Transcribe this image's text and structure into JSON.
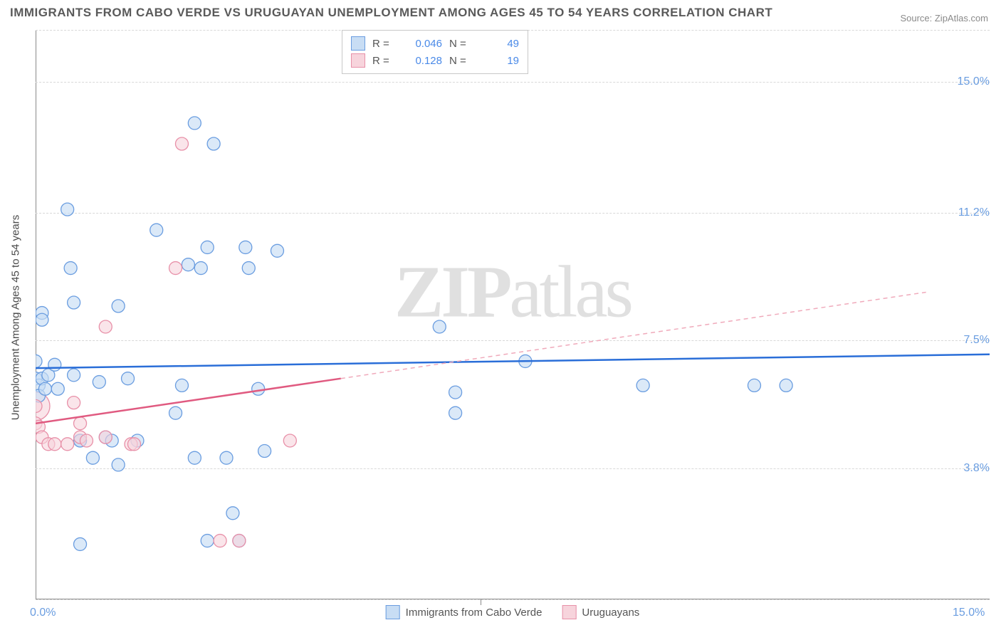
{
  "title": "IMMIGRANTS FROM CABO VERDE VS URUGUAYAN UNEMPLOYMENT AMONG AGES 45 TO 54 YEARS CORRELATION CHART",
  "source": "Source: ZipAtlas.com",
  "ylabel": "Unemployment Among Ages 45 to 54 years",
  "watermark_a": "ZIP",
  "watermark_b": "atlas",
  "xlim": [
    0,
    15
  ],
  "ylim": [
    0,
    16.5
  ],
  "xticks": [
    {
      "v": 0,
      "label": "0.0%"
    },
    {
      "v": 15,
      "label": "15.0%"
    }
  ],
  "xtick_mid": 7.0,
  "yticks": [
    {
      "v": 3.8,
      "label": "3.8%"
    },
    {
      "v": 7.5,
      "label": "7.5%"
    },
    {
      "v": 11.2,
      "label": "11.2%"
    },
    {
      "v": 15.0,
      "label": "15.0%"
    }
  ],
  "grid_y": [
    0,
    3.8,
    7.5,
    11.2,
    15.0,
    16.5
  ],
  "series": {
    "blue": {
      "label": "Immigrants from Cabo Verde",
      "fill": "#c8ddf4",
      "stroke": "#6a9de0",
      "fill_opacity": 0.65,
      "r_small": 9,
      "R": "0.046",
      "N": "49",
      "trend": {
        "x1": 0,
        "y1": 6.7,
        "x2": 15,
        "y2": 7.1,
        "color": "#2a6ed8",
        "width": 2.5
      },
      "points": [
        [
          0.1,
          8.3
        ],
        [
          0.1,
          8.1
        ],
        [
          0.0,
          6.9
        ],
        [
          0.0,
          6.4
        ],
        [
          0.05,
          6.2
        ],
        [
          0.05,
          5.9
        ],
        [
          0.1,
          6.4
        ],
        [
          0.15,
          6.1
        ],
        [
          0.2,
          6.5
        ],
        [
          0.3,
          6.8
        ],
        [
          0.35,
          6.1
        ],
        [
          0.5,
          11.3
        ],
        [
          0.55,
          9.6
        ],
        [
          0.6,
          8.6
        ],
        [
          0.6,
          6.5
        ],
        [
          0.7,
          4.6
        ],
        [
          0.7,
          4.6
        ],
        [
          0.7,
          1.6
        ],
        [
          0.9,
          4.1
        ],
        [
          1.0,
          6.3
        ],
        [
          1.1,
          4.7
        ],
        [
          1.2,
          4.6
        ],
        [
          1.3,
          8.5
        ],
        [
          1.3,
          3.9
        ],
        [
          1.45,
          6.4
        ],
        [
          1.6,
          4.6
        ],
        [
          1.9,
          10.7
        ],
        [
          2.2,
          5.4
        ],
        [
          2.3,
          6.2
        ],
        [
          2.4,
          9.7
        ],
        [
          2.5,
          13.8
        ],
        [
          2.5,
          4.1
        ],
        [
          2.6,
          9.6
        ],
        [
          2.7,
          1.7
        ],
        [
          2.7,
          10.2
        ],
        [
          2.8,
          13.2
        ],
        [
          3.0,
          4.1
        ],
        [
          3.1,
          2.5
        ],
        [
          3.2,
          1.7
        ],
        [
          3.3,
          10.2
        ],
        [
          3.35,
          9.6
        ],
        [
          3.5,
          6.1
        ],
        [
          3.6,
          4.3
        ],
        [
          3.8,
          10.1
        ],
        [
          6.35,
          7.9
        ],
        [
          6.6,
          5.4
        ],
        [
          6.6,
          6.0
        ],
        [
          7.7,
          6.9
        ],
        [
          9.55,
          6.2
        ],
        [
          11.3,
          6.2
        ],
        [
          11.8,
          6.2
        ]
      ]
    },
    "pink": {
      "label": "Uruguayans",
      "fill": "#f7d4dc",
      "stroke": "#e890a8",
      "fill_opacity": 0.6,
      "r_small": 9,
      "R": "0.128",
      "N": "19",
      "trend_solid": {
        "x1": 0,
        "y1": 5.1,
        "x2": 4.8,
        "y2": 6.4,
        "color": "#e05a80",
        "width": 2.5
      },
      "trend_dash": {
        "x1": 4.8,
        "y1": 6.4,
        "x2": 14,
        "y2": 8.9,
        "color": "#f0aabb",
        "width": 1.5
      },
      "points": [
        [
          0.0,
          5.6
        ],
        [
          0.0,
          5.1
        ],
        [
          0.05,
          5.0
        ],
        [
          0.1,
          4.7
        ],
        [
          0.2,
          4.5
        ],
        [
          0.3,
          4.5
        ],
        [
          0.5,
          4.5
        ],
        [
          0.6,
          5.7
        ],
        [
          0.7,
          5.1
        ],
        [
          0.7,
          4.7
        ],
        [
          0.8,
          4.6
        ],
        [
          1.1,
          4.7
        ],
        [
          1.1,
          7.9
        ],
        [
          1.5,
          4.5
        ],
        [
          1.55,
          4.5
        ],
        [
          2.2,
          9.6
        ],
        [
          2.3,
          13.2
        ],
        [
          2.9,
          1.7
        ],
        [
          3.2,
          1.7
        ],
        [
          4.0,
          4.6
        ]
      ],
      "big_point": {
        "x": 0.0,
        "y": 5.6,
        "r": 20
      }
    }
  },
  "legend_stats": [
    {
      "swatch": "blue",
      "r_label": "R =",
      "r_val": "0.046",
      "n_label": "N =",
      "n_val": "49"
    },
    {
      "swatch": "pink",
      "r_label": "R =",
      "r_val": "0.128",
      "n_label": "N =",
      "n_val": "19"
    }
  ],
  "colors": {
    "title": "#5a5a5a",
    "source": "#8a8a8a",
    "axis": "#8a8a8a",
    "grid": "#d8d8d8",
    "tick_label": "#6a9de0",
    "watermark": "#e0e0e0"
  }
}
